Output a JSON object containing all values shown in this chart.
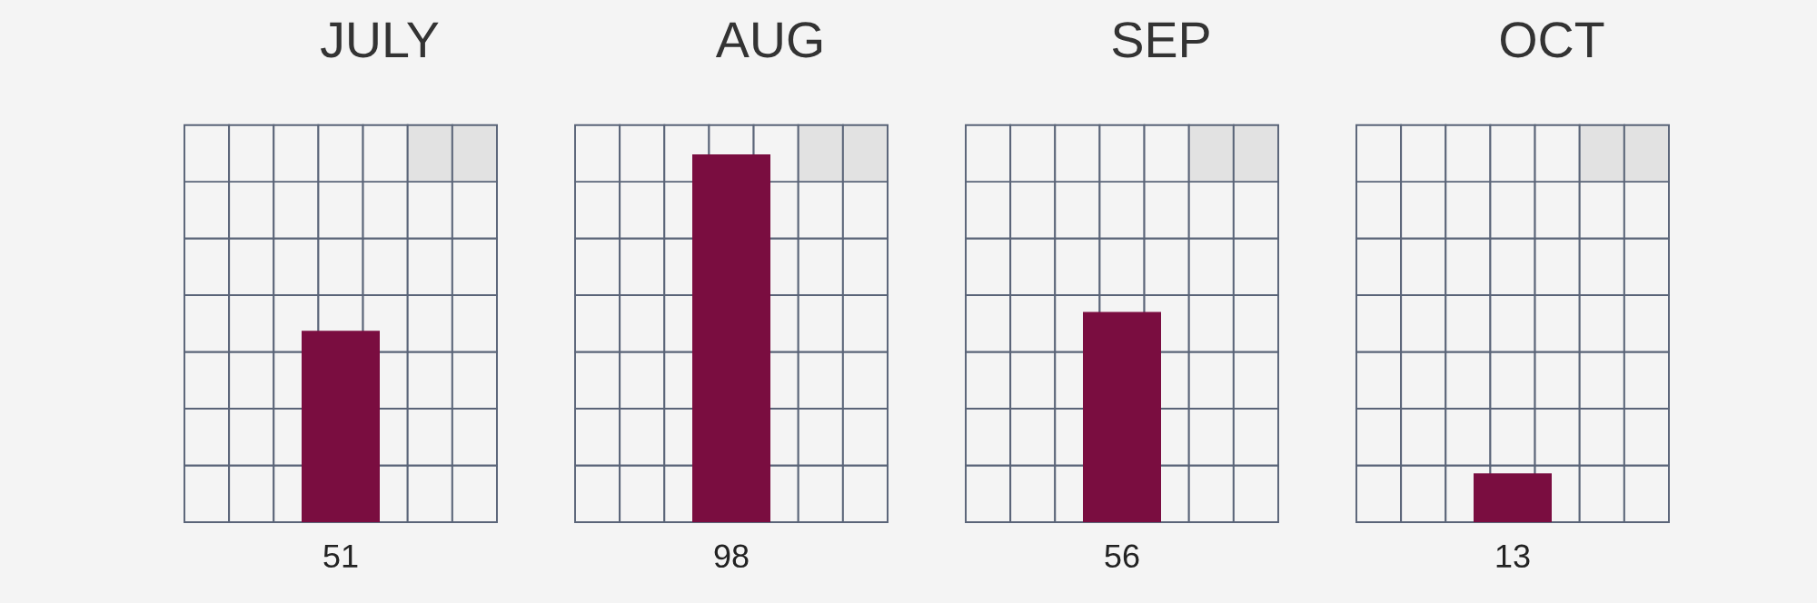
{
  "chart_data": {
    "type": "bar",
    "categories": [
      "JULY",
      "AUG",
      "SEP",
      "OCT"
    ],
    "values": [
      51,
      98,
      56,
      13
    ],
    "color": "#7a0d40",
    "data_labels": true
  }
}
